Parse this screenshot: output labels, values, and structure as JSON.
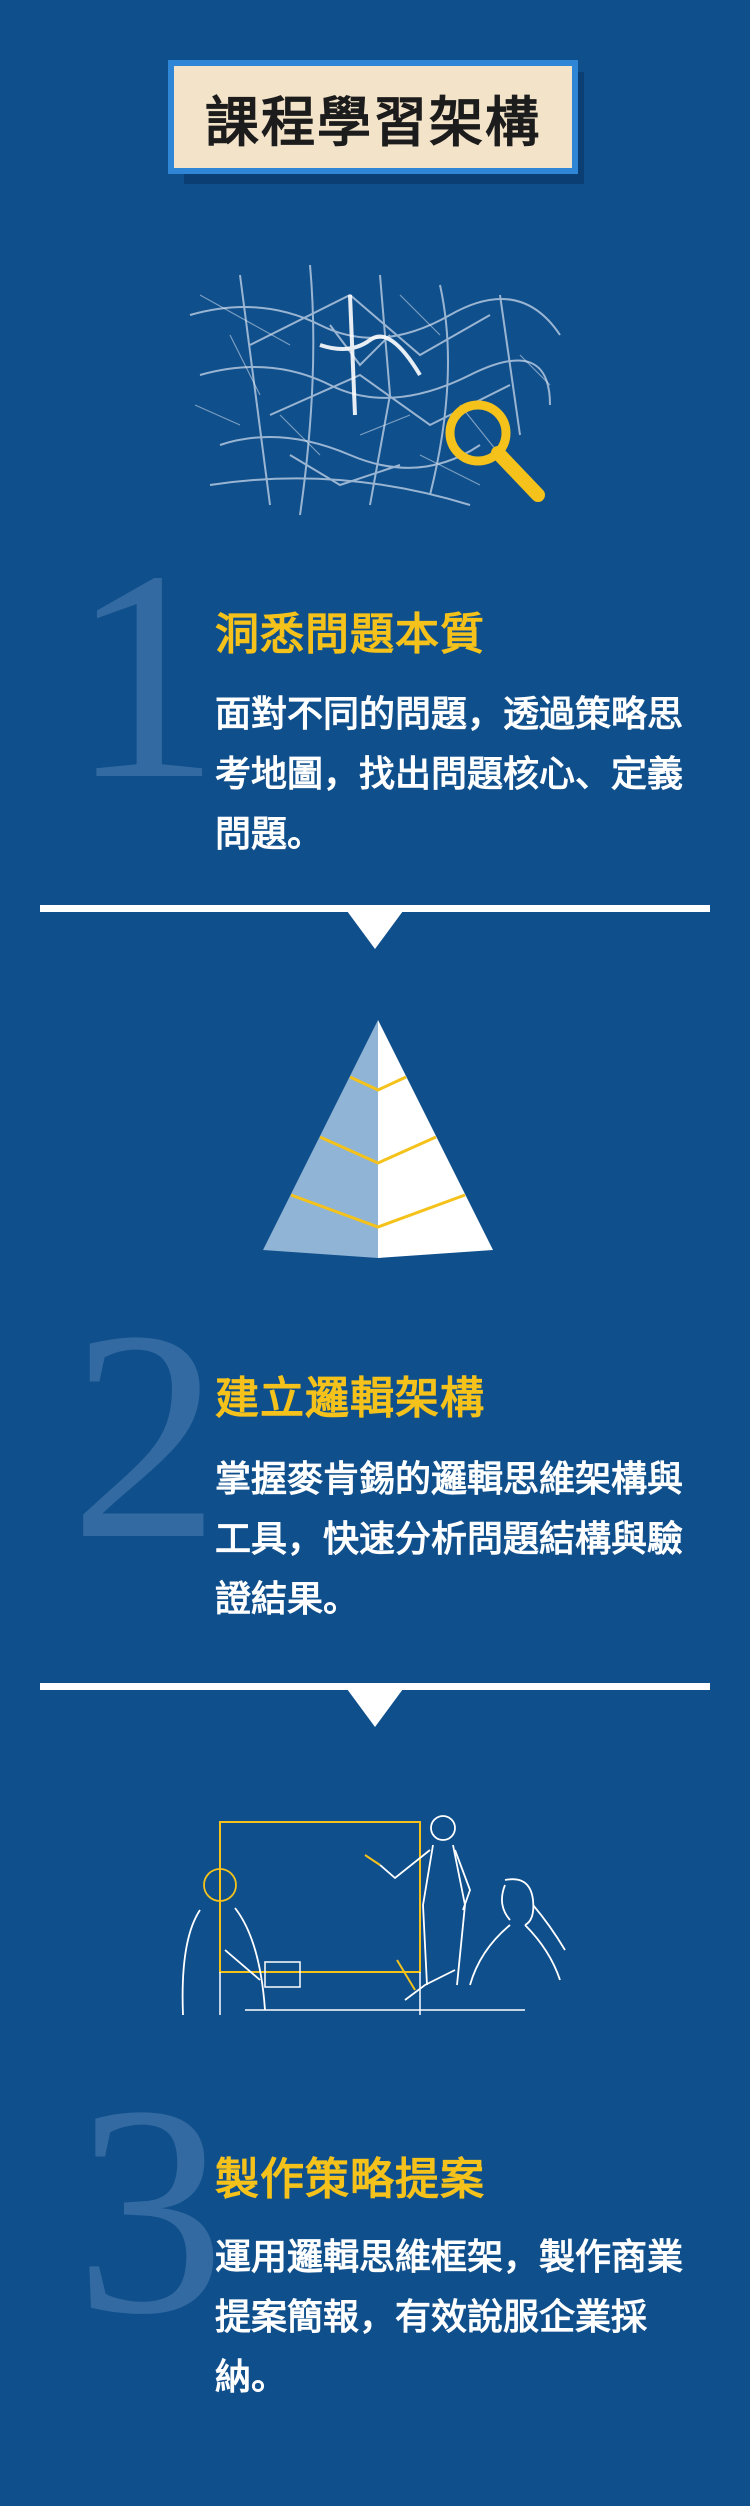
{
  "title": "課程學習架構",
  "sections": [
    {
      "number": "1",
      "heading": "洞悉問題本質",
      "body": "面對不同的問題，透過策略思考地圖，找出問題核心、定義問題。"
    },
    {
      "number": "2",
      "heading": "建立邏輯架構",
      "body": "掌握麥肯錫的邏輯思維架構與工具，快速分析問題結構與驗證結果。"
    },
    {
      "number": "3",
      "heading": "製作策略提案",
      "body": "運用邏輯思維框架，製作商業提案簡報，有效說服企業採納。"
    }
  ],
  "colors": {
    "background": "#0f4f8c",
    "accent_gold": "#f4c21a",
    "badge_fill": "#f3e4c9",
    "badge_border": "#2f86d6"
  },
  "icons": [
    "city-map-magnifier-icon",
    "pyramid-icon",
    "presentation-meeting-icon"
  ]
}
